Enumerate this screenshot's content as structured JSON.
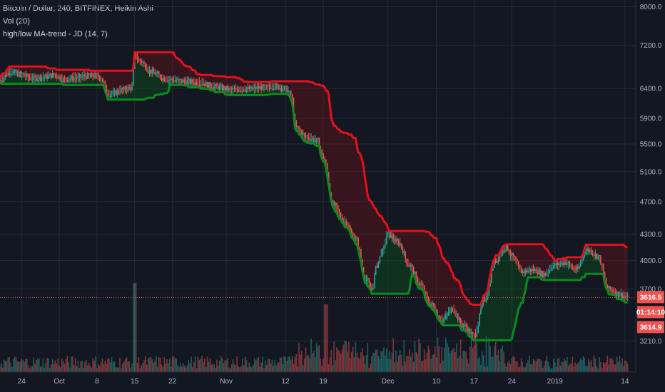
{
  "legend": {
    "symbol": "Bitcoin / Dollar, 240, BITFINEX, Heikin Ashi",
    "volume": "Vol (20)",
    "indicator": "high/low MA-trend - JD (14, 7)"
  },
  "colors": {
    "background": "#131722",
    "grid": "#252a36",
    "up_candle": "#26a69a",
    "down_candle": "#ef5350",
    "ma_high": "#e4111b",
    "ma_low": "#0b8a1e",
    "price_line": "#ef5350"
  },
  "chart_data": {
    "type": "line",
    "title": "Bitcoin / Dollar, 240, BITFINEX, Heikin Ashi",
    "y_scale": "log",
    "ylim": [
      2950,
      8150
    ],
    "y_ticks": [
      "8000.0",
      "7200.0",
      "6400.0",
      "5900.0",
      "5500.0",
      "5100.0",
      "4700.0",
      "4300.0",
      "4000.0",
      "3700.0",
      "3210.0"
    ],
    "x_ticks": [
      "24",
      "Oct",
      "8",
      "15",
      "22",
      "Nov",
      "12",
      "19",
      "Dec",
      "10",
      "17",
      "24",
      "2019",
      "14"
    ],
    "x_tick_days": [
      0,
      7,
      14,
      21,
      28,
      38,
      49,
      56,
      68,
      77,
      84,
      91,
      99,
      112
    ],
    "x_range_days": [
      -4,
      114
    ],
    "last_price": "3616.5",
    "countdown": "01:14:10",
    "marker_price": "3614.9",
    "price_anchors": [
      {
        "d": -4,
        "p": 6550
      },
      {
        "d": -2,
        "p": 6700
      },
      {
        "d": 0,
        "p": 6650
      },
      {
        "d": 2,
        "p": 6580
      },
      {
        "d": 4,
        "p": 6600
      },
      {
        "d": 6,
        "p": 6640
      },
      {
        "d": 8,
        "p": 6560
      },
      {
        "d": 10,
        "p": 6590
      },
      {
        "d": 12,
        "p": 6620
      },
      {
        "d": 14,
        "p": 6630
      },
      {
        "d": 15,
        "p": 6550
      },
      {
        "d": 16,
        "p": 6300
      },
      {
        "d": 17,
        "p": 6320
      },
      {
        "d": 19,
        "p": 6380
      },
      {
        "d": 20.5,
        "p": 6420
      },
      {
        "d": 21,
        "p": 7000
      },
      {
        "d": 22,
        "p": 6900
      },
      {
        "d": 24,
        "p": 6700
      },
      {
        "d": 27,
        "p": 6560
      },
      {
        "d": 30,
        "p": 6530
      },
      {
        "d": 33,
        "p": 6500
      },
      {
        "d": 36,
        "p": 6430
      },
      {
        "d": 39,
        "p": 6380
      },
      {
        "d": 42,
        "p": 6390
      },
      {
        "d": 45,
        "p": 6420
      },
      {
        "d": 47,
        "p": 6440
      },
      {
        "d": 49,
        "p": 6400
      },
      {
        "d": 50,
        "p": 6300
      },
      {
        "d": 51,
        "p": 5750
      },
      {
        "d": 53,
        "p": 5600
      },
      {
        "d": 55,
        "p": 5550
      },
      {
        "d": 56,
        "p": 5300
      },
      {
        "d": 58,
        "p": 4650
      },
      {
        "d": 60,
        "p": 4450
      },
      {
        "d": 62,
        "p": 4250
      },
      {
        "d": 64,
        "p": 3800
      },
      {
        "d": 65,
        "p": 3700
      },
      {
        "d": 66,
        "p": 3950
      },
      {
        "d": 67,
        "p": 4100
      },
      {
        "d": 68,
        "p": 4300
      },
      {
        "d": 70,
        "p": 4200
      },
      {
        "d": 72,
        "p": 3950
      },
      {
        "d": 74,
        "p": 3750
      },
      {
        "d": 76,
        "p": 3550
      },
      {
        "d": 78,
        "p": 3400
      },
      {
        "d": 80,
        "p": 3500
      },
      {
        "d": 82,
        "p": 3350
      },
      {
        "d": 84,
        "p": 3260
      },
      {
        "d": 86,
        "p": 3600
      },
      {
        "d": 88,
        "p": 4000
      },
      {
        "d": 90,
        "p": 4150
      },
      {
        "d": 91,
        "p": 4050
      },
      {
        "d": 93,
        "p": 3880
      },
      {
        "d": 95,
        "p": 3900
      },
      {
        "d": 97,
        "p": 3850
      },
      {
        "d": 99,
        "p": 3950
      },
      {
        "d": 101,
        "p": 3980
      },
      {
        "d": 103,
        "p": 3900
      },
      {
        "d": 105,
        "p": 4120
      },
      {
        "d": 107,
        "p": 4050
      },
      {
        "d": 109,
        "p": 3700
      },
      {
        "d": 111,
        "p": 3650
      },
      {
        "d": 112.5,
        "p": 3616
      }
    ]
  }
}
